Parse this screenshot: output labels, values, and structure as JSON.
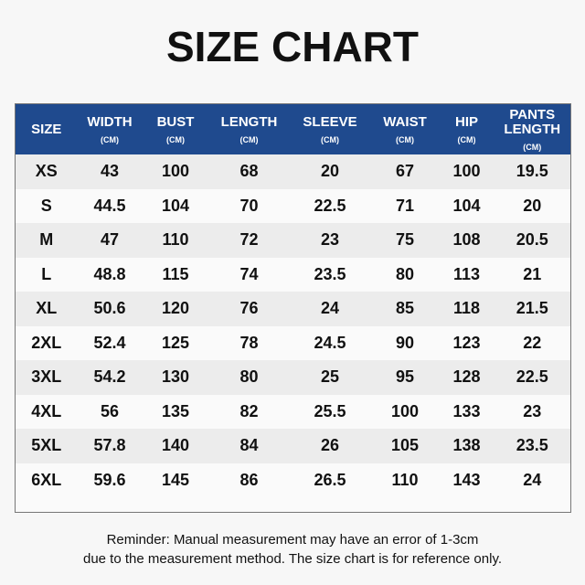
{
  "header": {
    "title": "SIZE CHART"
  },
  "table": {
    "columns": [
      {
        "label": "SIZE"
      },
      {
        "label": "WIDTH",
        "unit": "(CM)"
      },
      {
        "label": "BUST",
        "unit": "(CM)"
      },
      {
        "label": "LENGTH",
        "unit": "(CM)"
      },
      {
        "label": "SLEEVE",
        "unit": "(CM)"
      },
      {
        "label": "WAIST",
        "unit": "(CM)"
      },
      {
        "label": "HIP",
        "unit": "(CM)"
      },
      {
        "label": "PANTS LENGTH",
        "unit": "(CM)"
      }
    ],
    "rows": [
      [
        "XS",
        43,
        100,
        68,
        20,
        67,
        100,
        19.5
      ],
      [
        "S",
        44.5,
        104,
        70,
        22.5,
        71,
        104,
        20
      ],
      [
        "M",
        47,
        110,
        72,
        23,
        75,
        108,
        20.5
      ],
      [
        "L",
        48.8,
        115,
        74,
        23.5,
        80,
        113,
        21
      ],
      [
        "XL",
        50.6,
        120,
        76,
        24,
        85,
        118,
        21.5
      ],
      [
        "2XL",
        52.4,
        125,
        78,
        24.5,
        90,
        123,
        22
      ],
      [
        "3XL",
        54.2,
        130,
        80,
        25,
        95,
        128,
        22.5
      ],
      [
        "4XL",
        56,
        135,
        82,
        25.5,
        100,
        133,
        23
      ],
      [
        "5XL",
        57.8,
        140,
        84,
        26,
        105,
        138,
        23.5
      ],
      [
        "6XL",
        59.6,
        145,
        86,
        26.5,
        110,
        143,
        24
      ]
    ]
  },
  "footer": {
    "lines": [
      "Reminder: Manual measurement may have an error of 1-3cm",
      "due to the measurement method. The size chart is for reference only."
    ]
  }
}
